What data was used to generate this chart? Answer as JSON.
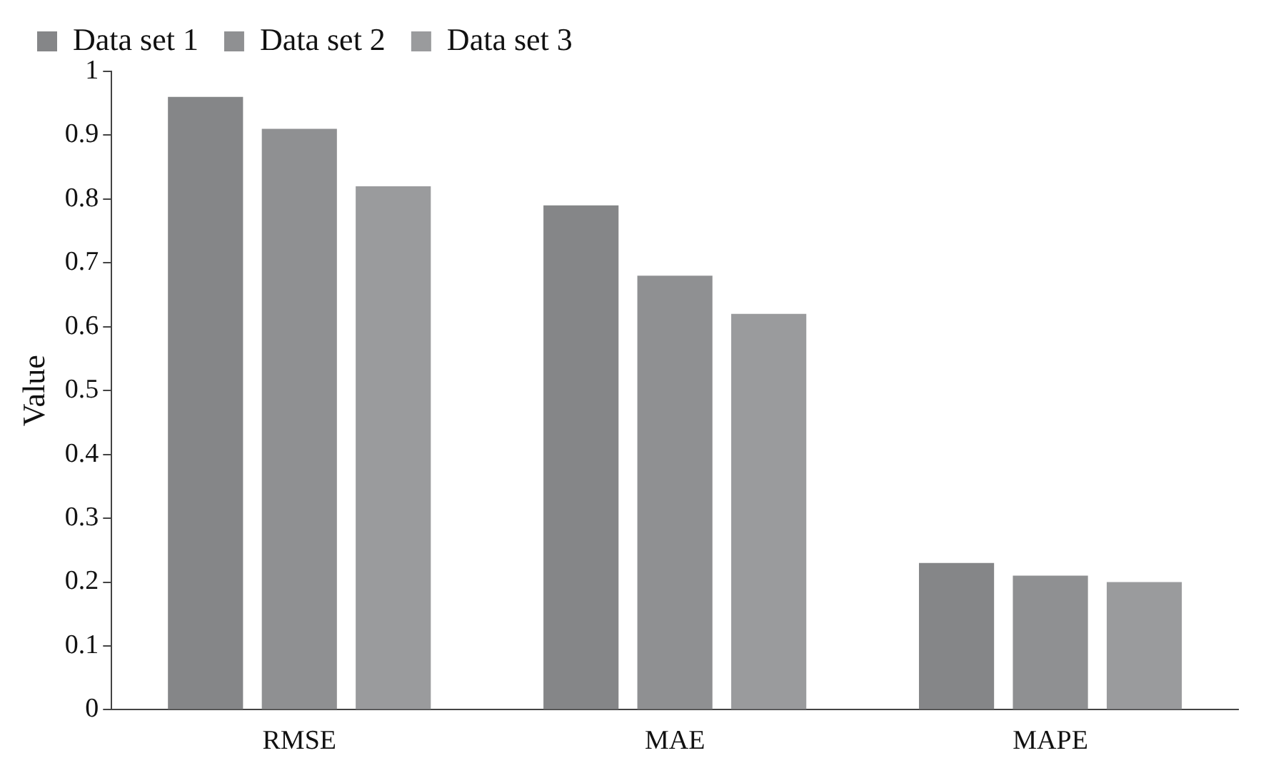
{
  "chart_data": {
    "type": "bar",
    "ylabel": "Value",
    "categories": [
      "RMSE",
      "MAE",
      "MAPE"
    ],
    "series": [
      {
        "name": "Data set 1",
        "color": "#858688",
        "values": [
          0.96,
          0.79,
          0.23
        ]
      },
      {
        "name": "Data set 2",
        "color": "#8f9092",
        "values": [
          0.91,
          0.68,
          0.21
        ]
      },
      {
        "name": "Data set 3",
        "color": "#9a9b9d",
        "values": [
          0.82,
          0.62,
          0.2
        ]
      }
    ],
    "ylim": [
      0,
      1
    ],
    "yticks": [
      0,
      0.1,
      0.2,
      0.3,
      0.4,
      0.5,
      0.6,
      0.7,
      0.8,
      0.9,
      1
    ],
    "grid": false,
    "legend": "top"
  }
}
